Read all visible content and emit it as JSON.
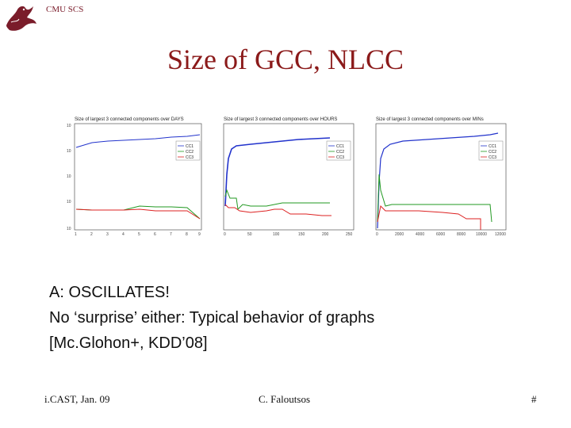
{
  "header": {
    "org": "CMU SCS",
    "title": "Size of GCC, NLCC"
  },
  "plots": [
    {
      "title": "Size of largest 3 connected components over DAYS",
      "legend": [
        "CC1",
        "CC2",
        "CC3"
      ],
      "x_ticks": [
        "1",
        "2",
        "3",
        "4",
        "5",
        "6",
        "7",
        "8",
        "9"
      ],
      "y_ticks": [
        "10",
        "10",
        "10",
        "10",
        "10"
      ]
    },
    {
      "title": "Size of largest 3 connected components over HOURS",
      "legend": [
        "CC1",
        "CC2",
        "CC3"
      ],
      "x_ticks": [
        "0",
        "50",
        "100",
        "150",
        "200",
        "250"
      ]
    },
    {
      "title": "Size of largest 3 connected components over MINs",
      "legend": [
        "CC1",
        "CC2",
        "CC3"
      ],
      "x_ticks": [
        "0",
        "2000",
        "4000",
        "6000",
        "8000",
        "10000",
        "12000"
      ]
    }
  ],
  "body": {
    "line1": "A: OSCILLATES!",
    "line2": "No ‘surprise’ either: Typical behavior of graphs",
    "line3": "[Mc.Glohon+, KDD’08]"
  },
  "footer": {
    "left": "i.CAST, Jan. 09",
    "center": "C. Faloutsos",
    "right": "#"
  },
  "colors": {
    "title": "#8b1a1a",
    "cc1": "#2233cc",
    "cc2": "#229922",
    "cc3": "#dd2222"
  }
}
